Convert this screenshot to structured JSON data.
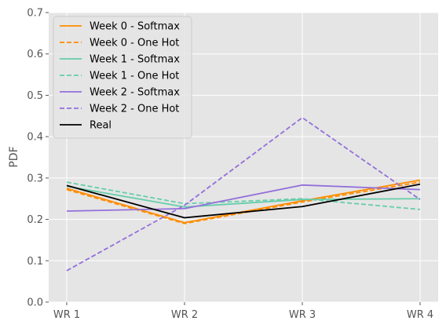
{
  "chart_data": {
    "type": "line",
    "title": "",
    "xlabel": "",
    "ylabel": "PDF",
    "categories": [
      "WR 1",
      "WR 2",
      "WR 3",
      "WR 4"
    ],
    "ylim": [
      0,
      0.7
    ],
    "yticks": [
      0.0,
      0.1,
      0.2,
      0.3,
      0.4,
      0.5,
      0.6,
      0.7
    ],
    "ytick_labels": [
      "0.0",
      "0.1",
      "0.2",
      "0.3",
      "0.4",
      "0.5",
      "0.6",
      "0.7"
    ],
    "grid": true,
    "legend_position": "top-left",
    "series": [
      {
        "name": "Week 0 - Softmax",
        "values": [
          0.275,
          0.192,
          0.245,
          0.295
        ],
        "color": "#ff8c00",
        "dash": "solid"
      },
      {
        "name": "Week 0 - One Hot",
        "values": [
          0.272,
          0.19,
          0.242,
          0.29
        ],
        "color": "#ff8c00",
        "dash": "dashed"
      },
      {
        "name": "Week 1 - Softmax",
        "values": [
          0.28,
          0.23,
          0.248,
          0.25
        ],
        "color": "#66cdaa",
        "dash": "solid"
      },
      {
        "name": "Week 1 - One Hot",
        "values": [
          0.29,
          0.238,
          0.25,
          0.224
        ],
        "color": "#66cdaa",
        "dash": "dashed"
      },
      {
        "name": "Week 2 - Softmax",
        "values": [
          0.22,
          0.226,
          0.283,
          0.272
        ],
        "color": "#9370db",
        "dash": "solid"
      },
      {
        "name": "Week 2 - One Hot",
        "values": [
          0.076,
          0.234,
          0.446,
          0.248
        ],
        "color": "#9370db",
        "dash": "dashed"
      },
      {
        "name": "Real",
        "values": [
          0.282,
          0.204,
          0.231,
          0.285
        ],
        "color": "#000000",
        "dash": "solid"
      }
    ]
  }
}
